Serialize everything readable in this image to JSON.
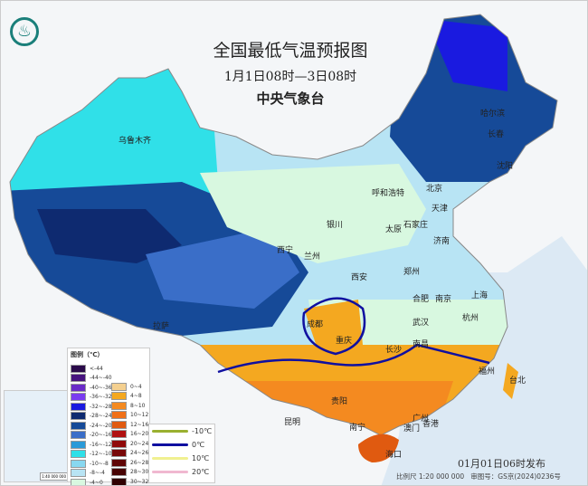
{
  "header": {
    "title": "全国最低气温预报图",
    "period": "1月1日08时—3日08时",
    "agency": "中央气象台",
    "logo_icon": "cma-logo-icon"
  },
  "cities": [
    "乌鲁木齐",
    "哈尔滨",
    "长春",
    "沈阳",
    "北京",
    "天津",
    "呼和浩特",
    "石家庄",
    "太原",
    "银川",
    "西宁",
    "兰州",
    "济南",
    "郑州",
    "西安",
    "合肥",
    "南京",
    "上海",
    "杭州",
    "武汉",
    "成都",
    "重庆",
    "长沙",
    "南昌",
    "福州",
    "台北",
    "贵阳",
    "昆明",
    "南宁",
    "广州",
    "澳门",
    "香港",
    "海口",
    "拉萨"
  ],
  "legend": {
    "title": "图例（℃）",
    "cold": [
      {
        "label": "<-44",
        "color": "#2a0a4a"
      },
      {
        "label": "-44~-40",
        "color": "#46127e"
      },
      {
        "label": "-40~-36",
        "color": "#6a2bc8"
      },
      {
        "label": "-36~-32",
        "color": "#7a3cf0"
      },
      {
        "label": "-32~-28",
        "color": "#1a1ae0"
      },
      {
        "label": "-28~-24",
        "color": "#0e2a70"
      },
      {
        "label": "-24~-20",
        "color": "#164a98"
      },
      {
        "label": "-20~-16",
        "color": "#3a6ec8"
      },
      {
        "label": "-16~-12",
        "color": "#2a9ad8"
      },
      {
        "label": "-12~-10",
        "color": "#30e0e8"
      },
      {
        "label": "-10~-8",
        "color": "#88d8f0"
      },
      {
        "label": "-8~-4",
        "color": "#b8e4f4"
      },
      {
        "label": "-4~0",
        "color": "#d8f8e0"
      }
    ],
    "warm": [
      {
        "label": "0~4",
        "color": "#f4d090"
      },
      {
        "label": "4~8",
        "color": "#f4a820"
      },
      {
        "label": "8~10",
        "color": "#f48a20"
      },
      {
        "label": "10~12",
        "color": "#f07018"
      },
      {
        "label": "12~16",
        "color": "#e05a10"
      },
      {
        "label": "16~20",
        "color": "#b01010"
      },
      {
        "label": "20~24",
        "color": "#900a0a"
      },
      {
        "label": "24~26",
        "color": "#780808"
      },
      {
        "label": "26~28",
        "color": "#600606"
      },
      {
        "label": "28~30",
        "color": "#480404"
      },
      {
        "label": "30~32",
        "color": "#300202"
      }
    ],
    "isolines": [
      {
        "label": "-10℃",
        "color": "#9ab030"
      },
      {
        "label": "0℃",
        "color": "#1010a0"
      },
      {
        "label": "10℃",
        "color": "#f0f090"
      },
      {
        "label": "20℃",
        "color": "#f0b8d0"
      }
    ]
  },
  "inset": {
    "scale": "1:40 000 000"
  },
  "footer": {
    "published": "01月01日06时发布",
    "scale": "比例尺 1:20 000 000",
    "review_no": "审图号：GS京(2024)0236号"
  }
}
